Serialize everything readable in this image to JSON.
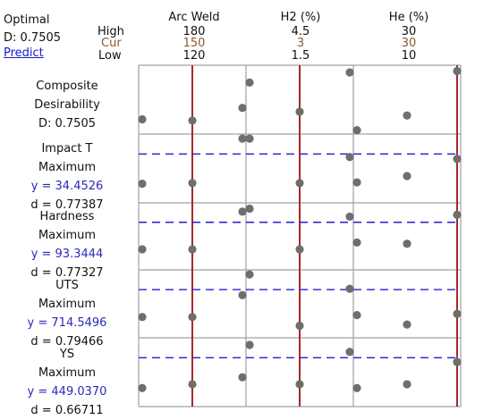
{
  "optimal": {
    "label": "Optimal",
    "d_text": "D: 0.7505",
    "predict_label": "Predict"
  },
  "level_labels": {
    "high": "High",
    "cur": "Cur",
    "low": "Low"
  },
  "colors": {
    "current_line": "#a52a2a",
    "target_line": "#2020c8",
    "point": "#6e6e6e",
    "grid": "#a0a0a0",
    "cur_text": "#8b5a2b",
    "y_text": "#2b2bb8"
  },
  "chart_data": {
    "type": "scatter",
    "factors": [
      {
        "name": "Arc Weld",
        "high": "180",
        "cur": "150",
        "low": "120",
        "high_value": 180,
        "cur_value": 150,
        "low_value": 120
      },
      {
        "name": "H2 (%)",
        "high": "4.5",
        "cur": "3",
        "low": "1.5",
        "high_value": 4.5,
        "cur_value": 3,
        "low_value": 1.5
      },
      {
        "name": "He (%)",
        "high": "30",
        "cur": "30",
        "low": "10",
        "high_value": 30,
        "cur_value": 30,
        "low_value": 10
      }
    ],
    "panels": [
      {
        "title": "Composite",
        "subtitle": "Desirability",
        "value_text": "D: 0.7505",
        "value_blue": false,
        "d_text": "",
        "has_target": false,
        "points": [
          [
            0.19,
            0.17,
            0.37
          ],
          [
            0.77,
            0.31,
            0.93
          ],
          [
            0.02,
            0.25,
            0.95
          ]
        ]
      },
      {
        "title": "Impact T",
        "subtitle": "Maximum",
        "value_text": "y = 34.4526",
        "value_blue": true,
        "d_text": "d = 0.77387",
        "has_target": true,
        "points": [
          [
            0.26,
            0.27,
            0.97
          ],
          [
            0.97,
            0.27,
            0.68
          ],
          [
            0.28,
            0.38,
            0.65
          ]
        ]
      },
      {
        "title": "Hardness",
        "subtitle": "Maximum",
        "value_text": "y = 93.3444",
        "value_blue": true,
        "d_text": "d = 0.77327",
        "has_target": true,
        "points": [
          [
            0.29,
            0.29,
            0.9
          ],
          [
            0.95,
            0.29,
            0.82
          ],
          [
            0.4,
            0.38,
            0.85
          ]
        ]
      },
      {
        "title": "UTS",
        "subtitle": "Maximum",
        "value_text": "y = 714.5496",
        "value_blue": true,
        "d_text": "d = 0.79466",
        "has_target": true,
        "points": [
          [
            0.29,
            0.29,
            0.64
          ],
          [
            0.97,
            0.15,
            0.74
          ],
          [
            0.32,
            0.17,
            0.34
          ]
        ]
      },
      {
        "title": "YS",
        "subtitle": "Maximum",
        "value_text": "y = 449.0370",
        "value_blue": true,
        "d_text": "d = 0.66711",
        "has_target": true,
        "points": [
          [
            0.25,
            0.31,
            0.42
          ],
          [
            0.93,
            0.31,
            0.82
          ],
          [
            0.25,
            0.31,
            0.66
          ]
        ]
      }
    ]
  }
}
